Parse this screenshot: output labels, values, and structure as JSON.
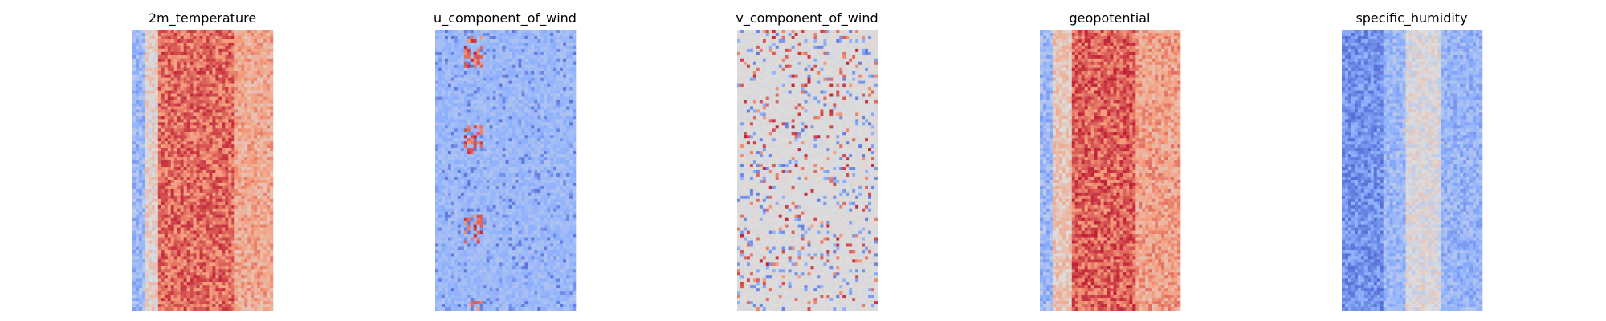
{
  "colormap": "coolwarm",
  "colors": {
    "background": "#ffffff",
    "cold": "#3b4cc0",
    "neutral": "#dddddd",
    "warm": "#b40426"
  },
  "chart_data": [
    {
      "type": "heatmap",
      "title": "2m_temperature",
      "axes_visible": false,
      "grid": false,
      "pattern": "vertical band: blue/light on left edge, deep red/orange in center, light orange toward right edge"
    },
    {
      "type": "heatmap",
      "title": "u_component_of_wind",
      "axes_visible": false,
      "grid": false,
      "pattern": "mostly light blue, scattered darker blue patches, red streaks in left-center"
    },
    {
      "type": "heatmap",
      "title": "v_component_of_wind",
      "axes_visible": false,
      "grid": false,
      "pattern": "mostly neutral grey, scattered red and blue speckles"
    },
    {
      "type": "heatmap",
      "title": "geopotential",
      "axes_visible": false,
      "grid": false,
      "pattern": "vertical band: blue/light on left edge, deep red/orange in center-left, light orange toward right"
    },
    {
      "type": "heatmap",
      "title": "specific_humidity",
      "axes_visible": false,
      "grid": false,
      "pattern": "mostly blue, darker blue on left, light/red speckled band in center"
    }
  ]
}
